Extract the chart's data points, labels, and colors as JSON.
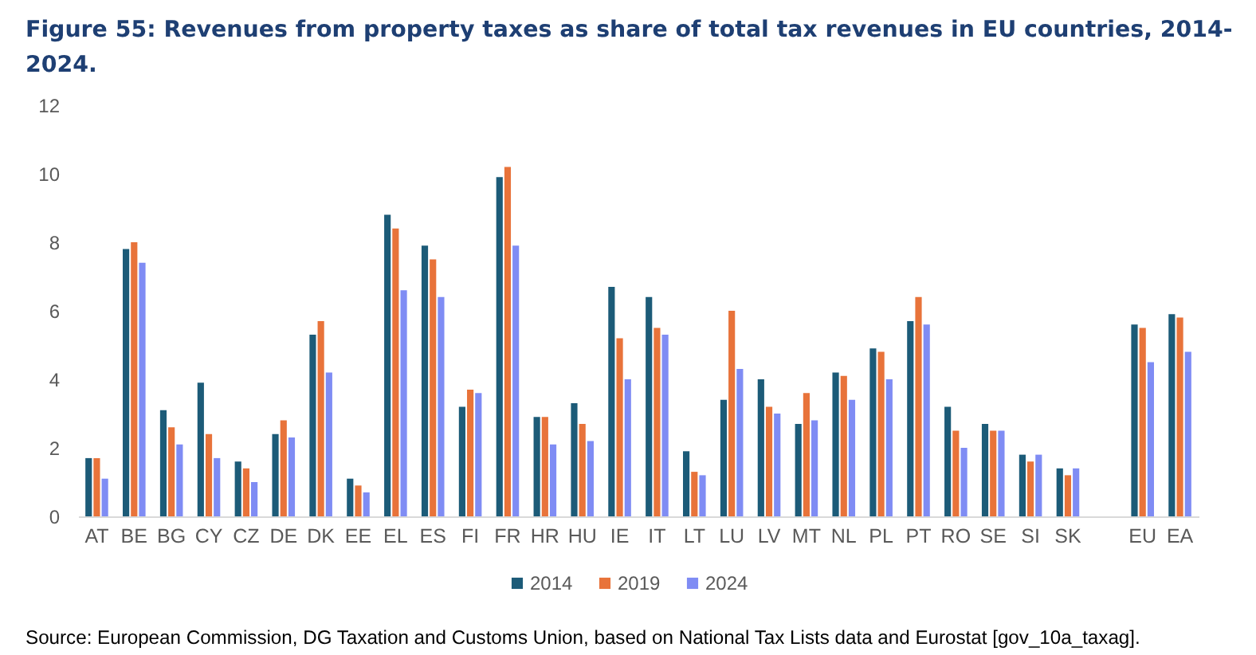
{
  "chart_data": {
    "type": "bar",
    "title": "Figure 55: Revenues from property taxes as share of total tax revenues in EU countries, 2014-2024.",
    "categories": [
      "AT",
      "BE",
      "BG",
      "CY",
      "CZ",
      "DE",
      "DK",
      "EE",
      "EL",
      "ES",
      "FI",
      "FR",
      "HR",
      "HU",
      "IE",
      "IT",
      "LT",
      "LU",
      "LV",
      "MT",
      "NL",
      "PL",
      "PT",
      "RO",
      "SE",
      "SI",
      "SK",
      null,
      "EU",
      "EA"
    ],
    "series": [
      {
        "name": "2014",
        "color": "#1c5b78",
        "values": [
          1.7,
          7.8,
          3.1,
          3.9,
          1.6,
          2.4,
          5.3,
          1.1,
          8.8,
          7.9,
          3.2,
          9.9,
          2.9,
          3.3,
          6.7,
          6.4,
          1.9,
          3.4,
          4.0,
          2.7,
          4.2,
          4.9,
          5.7,
          3.2,
          2.7,
          1.8,
          1.4,
          null,
          5.6,
          5.9
        ]
      },
      {
        "name": "2019",
        "color": "#e8733a",
        "values": [
          1.7,
          8.0,
          2.6,
          2.4,
          1.4,
          2.8,
          5.7,
          0.9,
          8.4,
          7.5,
          3.7,
          10.2,
          2.9,
          2.7,
          5.2,
          5.5,
          1.3,
          6.0,
          3.2,
          3.6,
          4.1,
          4.8,
          6.4,
          2.5,
          2.5,
          1.6,
          1.2,
          null,
          5.5,
          5.8
        ]
      },
      {
        "name": "2024",
        "color": "#7f8cf4",
        "values": [
          1.1,
          7.4,
          2.1,
          1.7,
          1.0,
          2.3,
          4.2,
          0.7,
          6.6,
          6.4,
          3.6,
          7.9,
          2.1,
          2.2,
          4.0,
          5.3,
          1.2,
          4.3,
          3.0,
          2.8,
          3.4,
          4.0,
          5.6,
          2.0,
          2.5,
          1.8,
          1.4,
          null,
          4.5,
          4.8
        ]
      }
    ],
    "ylim": [
      0,
      12
    ],
    "yticks": [
      0,
      2,
      4,
      6,
      8,
      10,
      12
    ],
    "grid": false,
    "legend": "bottom",
    "annotations": [
      "Source: European Commission, DG Taxation and Customs Union, based on National Tax Lists data and Eurostat [gov_10a_taxag]."
    ]
  }
}
